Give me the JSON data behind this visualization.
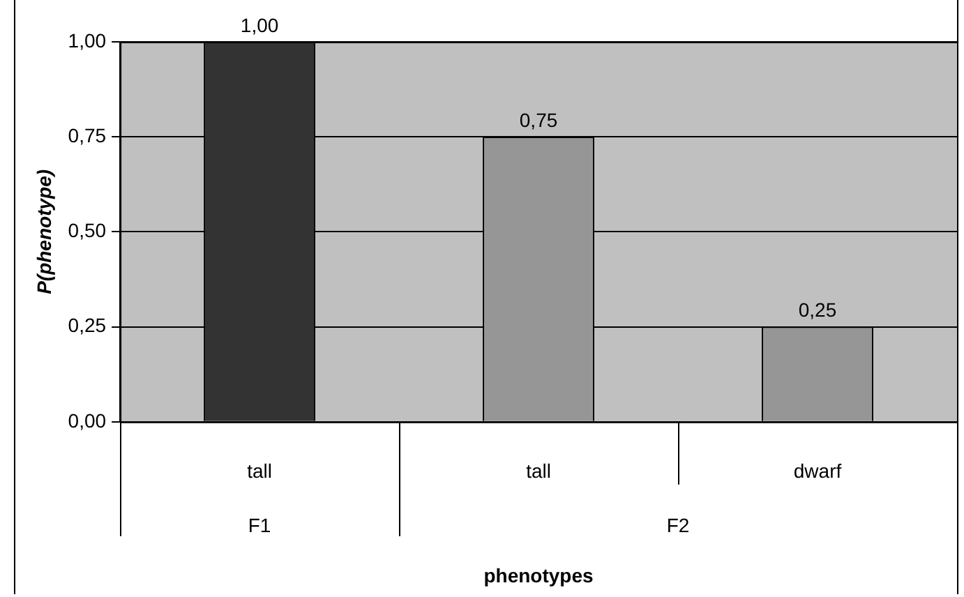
{
  "chart_data": {
    "type": "bar",
    "xlabel": "phenotypes",
    "ylabel": "P(phenotype)",
    "categories": [
      "tall",
      "tall",
      "dwarf"
    ],
    "values": [
      1.0,
      0.75,
      0.25
    ],
    "colors": [
      "#333333",
      "#969696",
      "#969696"
    ],
    "value_labels": [
      "1,00",
      "0,75",
      "0,25"
    ],
    "ylim": [
      0,
      1
    ],
    "yticks": [
      {
        "value": 0,
        "label": "0,00"
      },
      {
        "value": 0.25,
        "label": "0,25"
      },
      {
        "value": 0.5,
        "label": "0,50"
      },
      {
        "value": 0.75,
        "label": "0,75"
      },
      {
        "value": 1,
        "label": "1,00"
      }
    ],
    "grid": "y",
    "legend": false,
    "annotations": [
      "F1",
      "F2"
    ]
  }
}
